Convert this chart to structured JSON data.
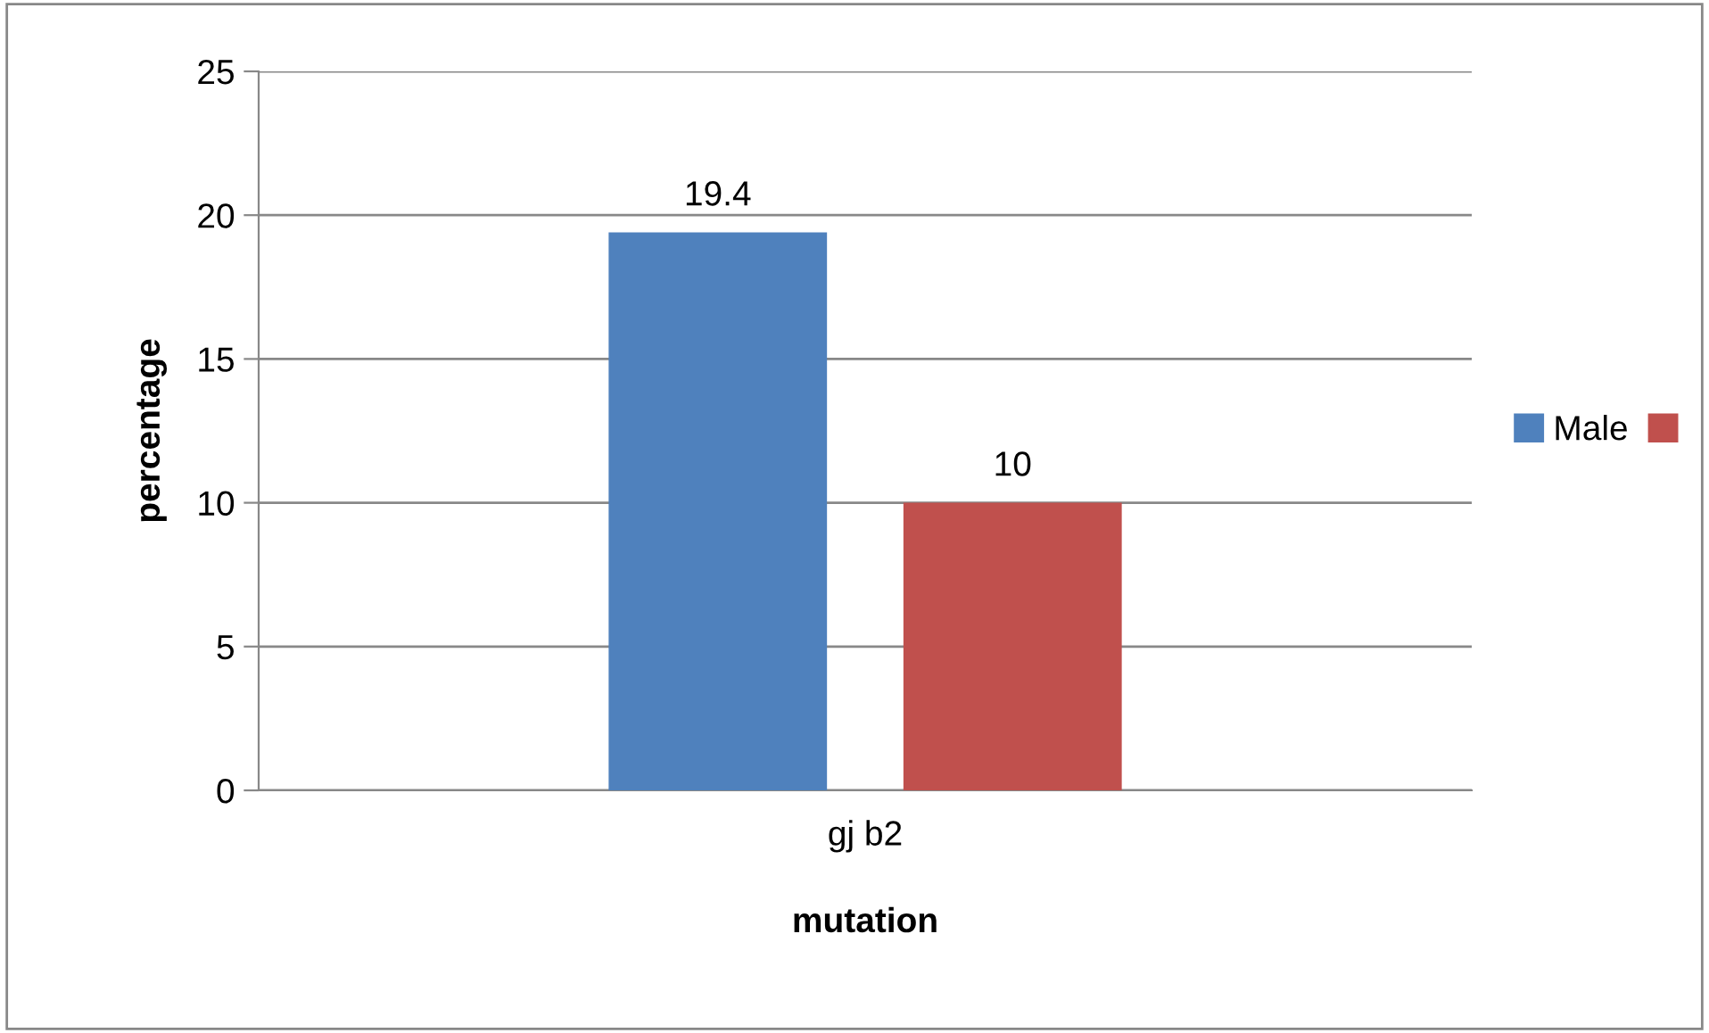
{
  "chart_data": {
    "type": "bar",
    "xlabel": "mutation",
    "ylabel": "percentage",
    "categories": [
      "gj b2"
    ],
    "series": [
      {
        "name": "Male",
        "color": "#4f81bd",
        "values": [
          19.4
        ]
      },
      {
        "color": "#c0504d",
        "values": [
          10
        ]
      }
    ],
    "ylim": [
      0,
      25
    ],
    "yticks": [
      0,
      5,
      10,
      15,
      20,
      25
    ],
    "grid": "y",
    "legend": "right",
    "data_labels": true
  }
}
